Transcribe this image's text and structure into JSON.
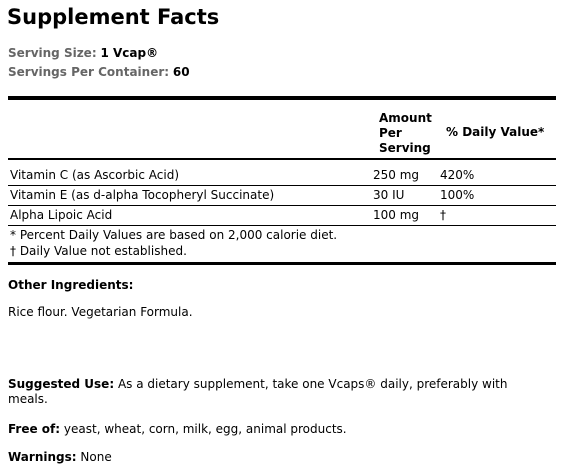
{
  "header": {
    "title": "Supplement Facts",
    "serving_size": {
      "label": "Serving Size:",
      "value": "1 Vcap®"
    },
    "servings_per_container": {
      "label": "Servings Per Container:",
      "value": "60"
    }
  },
  "table": {
    "columns": [
      "Amount Per Serving",
      "% Daily Value*"
    ],
    "rows": [
      [
        "Vitamin C (as Ascorbic Acid)",
        "250 mg",
        "420%"
      ],
      [
        "Vitamin E (as d-alpha Tocopheryl Succinate)",
        "30 IU",
        "100%"
      ],
      [
        "Alpha Lipoic Acid",
        "100 mg",
        "†"
      ]
    ],
    "footnotes": [
      "* Percent Daily Values are based on 2,000 calorie diet.",
      "† Daily Value not established."
    ]
  },
  "sections": [
    {
      "label": "Other Ingredients:",
      "text": "Rice flour. Vegetarian Formula."
    },
    {
      "label": "Suggested Use:",
      "text": "As a dietary supplement, take one Vcaps® daily, preferably with meals."
    },
    {
      "label": "Free of:",
      "text": "yeast, wheat, corn, milk, egg, animal products."
    },
    {
      "label": "Warnings:",
      "text": "None"
    }
  ]
}
